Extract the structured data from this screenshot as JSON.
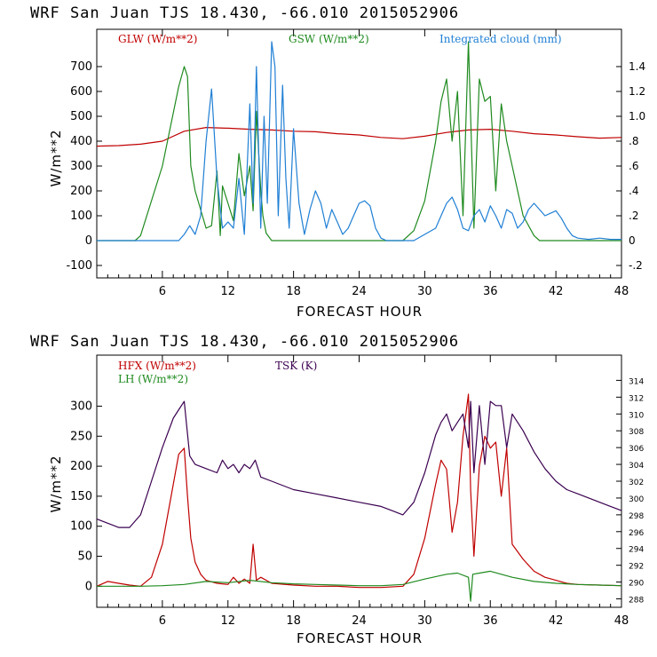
{
  "colors": {
    "red": "#c00000",
    "green": "#1f8a1f",
    "blue": "#1f7fd4",
    "purple": "#3a0050"
  },
  "chart_data": [
    {
      "type": "line",
      "header": "WRF  San Juan TJS  18.430, -66.010  2015052906",
      "xlabel": "FORECAST HOUR",
      "ylabel": "W/m**2",
      "xlim": [
        0,
        48
      ],
      "ylim": [
        -150,
        850
      ],
      "y2lim": [
        -0.3,
        1.7
      ],
      "x_ticks": [
        "6",
        "12",
        "18",
        "24",
        "30",
        "36",
        "42",
        "48"
      ],
      "y_ticks": [
        -100,
        0,
        100,
        200,
        300,
        400,
        500,
        600,
        700
      ],
      "y2_ticks": [
        "-.2",
        "0",
        ".2",
        ".4",
        ".6",
        ".8",
        "1.0",
        "1.2",
        "1.4"
      ],
      "grid": false,
      "legend": [
        {
          "label": "GLW (W/m**2)",
          "color": "#c00000"
        },
        {
          "label": "GSW (W/m**2)",
          "color": "#1f8a1f"
        },
        {
          "label": "Integrated cloud (mm)",
          "color": "#1f7fd4"
        }
      ],
      "series": [
        {
          "name": "GLW (W/m**2)",
          "axis": "left",
          "color": "#c00000",
          "x": [
            0,
            2,
            4,
            6,
            8,
            10,
            12,
            14,
            16,
            18,
            20,
            22,
            24,
            26,
            28,
            30,
            32,
            34,
            36,
            38,
            40,
            42,
            44,
            46,
            48
          ],
          "y": [
            380,
            382,
            388,
            400,
            440,
            455,
            452,
            448,
            445,
            440,
            438,
            430,
            425,
            415,
            410,
            420,
            435,
            445,
            448,
            440,
            430,
            425,
            418,
            412,
            415
          ]
        },
        {
          "name": "GSW (W/m**2)",
          "axis": "left",
          "color": "#1f8a1f",
          "x": [
            0,
            3.5,
            4,
            6,
            7.5,
            8,
            8.3,
            8.6,
            9,
            10,
            10.5,
            11,
            11.3,
            11.5,
            12,
            12.5,
            13,
            13.5,
            14,
            14.3,
            14.6,
            15,
            15.2,
            15.5,
            16,
            28,
            29,
            30,
            31,
            31.5,
            32,
            32.5,
            33,
            33.5,
            34,
            34.2,
            34.5,
            35,
            35.5,
            36,
            36.5,
            37,
            37.5,
            38,
            39,
            40,
            40.5,
            48
          ],
          "y": [
            0,
            0,
            20,
            300,
            620,
            700,
            660,
            300,
            200,
            50,
            60,
            280,
            20,
            220,
            150,
            80,
            350,
            180,
            300,
            120,
            520,
            200,
            100,
            30,
            0,
            0,
            40,
            160,
            400,
            560,
            650,
            400,
            600,
            100,
            800,
            500,
            50,
            650,
            560,
            580,
            200,
            550,
            400,
            300,
            100,
            20,
            0,
            0
          ]
        },
        {
          "name": "Integrated cloud (mm)",
          "axis": "right",
          "color": "#1f7fd4",
          "x": [
            0,
            7.5,
            8,
            8.5,
            9,
            9.5,
            10,
            10.5,
            11,
            11.5,
            12,
            12.5,
            13,
            13.5,
            14,
            14.3,
            14.6,
            15,
            15.3,
            15.6,
            16,
            16.3,
            16.6,
            17,
            17.3,
            17.6,
            18,
            18.5,
            19,
            19.5,
            20,
            20.5,
            21,
            21.5,
            22,
            22.5,
            23,
            23.5,
            24,
            24.5,
            25,
            25.5,
            26,
            26.5,
            27,
            28,
            29,
            30,
            31,
            31.5,
            32,
            32.5,
            33,
            33.5,
            34,
            34.5,
            35,
            35.5,
            36,
            36.5,
            37,
            37.5,
            38,
            38.5,
            39,
            39.5,
            40,
            40.5,
            41,
            41.5,
            42,
            42.5,
            43,
            43.5,
            44,
            45,
            46,
            47,
            48
          ],
          "y": [
            0,
            0,
            0.05,
            0.12,
            0.05,
            0.2,
            0.8,
            1.22,
            0.5,
            0.1,
            0.15,
            0.1,
            0.5,
            0.05,
            1.1,
            0.3,
            1.4,
            0.1,
            1.0,
            0.3,
            1.6,
            1.4,
            0.2,
            1.25,
            0.5,
            0.1,
            0.9,
            0.3,
            0.05,
            0.25,
            0.4,
            0.3,
            0.1,
            0.25,
            0.15,
            0.05,
            0.1,
            0.2,
            0.3,
            0.32,
            0.28,
            0.1,
            0.02,
            0,
            0,
            0,
            0,
            0.05,
            0.1,
            0.2,
            0.3,
            0.35,
            0.25,
            0.1,
            0.08,
            0.2,
            0.25,
            0.15,
            0.28,
            0.2,
            0.1,
            0.25,
            0.22,
            0.1,
            0.15,
            0.25,
            0.3,
            0.25,
            0.2,
            0.22,
            0.24,
            0.18,
            0.1,
            0.04,
            0.02,
            0.01,
            0.02,
            0.01,
            0.01
          ]
        }
      ]
    },
    {
      "type": "line",
      "header": "WRF  San Juan TJS  18.430, -66.010  2015052906",
      "xlabel": "FORECAST HOUR",
      "ylabel": "W/m**2",
      "xlim": [
        0,
        48
      ],
      "ylim": [
        -35,
        385
      ],
      "y2lim": [
        287,
        317
      ],
      "x_ticks": [
        "6",
        "12",
        "18",
        "24",
        "30",
        "36",
        "42",
        "48"
      ],
      "y_ticks": [
        0,
        50,
        100,
        150,
        200,
        250,
        300
      ],
      "y2_ticks": [
        "288",
        "290",
        "292",
        "294",
        "296",
        "298",
        "300",
        "302",
        "304",
        "306",
        "308",
        "310",
        "312",
        "314"
      ],
      "grid": false,
      "legend": [
        {
          "label": "HFX (W/m**2)",
          "color": "#c00000"
        },
        {
          "label": "LH  (W/m**2)",
          "color": "#1f8a1f"
        },
        {
          "label": "TSK (K)",
          "color": "#3a0050"
        }
      ],
      "series": [
        {
          "name": "HFX (W/m**2)",
          "axis": "left",
          "color": "#c00000",
          "x": [
            0,
            1,
            2,
            3,
            4,
            5,
            6,
            7,
            7.5,
            8,
            8.3,
            8.6,
            9,
            9.5,
            10,
            11,
            12,
            12.5,
            13,
            13.5,
            14,
            14.3,
            14.6,
            15,
            16,
            18,
            20,
            22,
            24,
            26,
            28,
            29,
            30,
            31,
            31.5,
            32,
            32.5,
            33,
            33.5,
            34,
            34.2,
            34.5,
            35,
            35.5,
            36,
            36.5,
            37,
            37.5,
            38,
            39,
            40,
            41,
            42,
            43,
            44,
            46,
            48
          ],
          "y": [
            0,
            8,
            5,
            2,
            0,
            15,
            70,
            170,
            220,
            230,
            150,
            80,
            40,
            20,
            10,
            5,
            3,
            15,
            5,
            12,
            5,
            70,
            10,
            15,
            5,
            2,
            0,
            0,
            -2,
            -2,
            0,
            20,
            80,
            170,
            210,
            195,
            90,
            140,
            250,
            320,
            160,
            50,
            200,
            250,
            230,
            240,
            150,
            230,
            70,
            45,
            25,
            15,
            10,
            5,
            3,
            2,
            1
          ]
        },
        {
          "name": "LH  (W/m**2)",
          "axis": "left",
          "color": "#1f8a1f",
          "x": [
            0,
            4,
            6,
            8,
            10,
            12,
            14,
            16,
            18,
            20,
            22,
            24,
            26,
            28,
            30,
            32,
            33,
            34,
            34.2,
            34.4,
            35,
            36,
            37,
            38,
            40,
            42,
            44,
            46,
            48
          ],
          "y": [
            0,
            0,
            1,
            3,
            8,
            6,
            10,
            6,
            4,
            3,
            2,
            1,
            1,
            3,
            12,
            20,
            22,
            15,
            -25,
            20,
            22,
            25,
            20,
            15,
            8,
            5,
            3,
            2,
            1
          ]
        },
        {
          "name": "TSK (K)",
          "axis": "right",
          "color": "#3a0050",
          "x": [
            0,
            1,
            2,
            3,
            4,
            5,
            6,
            7,
            7.5,
            8,
            8.5,
            9,
            10,
            11,
            11.5,
            12,
            12.5,
            13,
            13.5,
            14,
            14.5,
            15,
            16,
            18,
            20,
            22,
            24,
            26,
            27,
            28,
            29,
            30,
            31,
            31.5,
            32,
            32.5,
            33,
            33.5,
            34,
            34.2,
            34.5,
            35,
            35.5,
            36,
            36.5,
            37,
            37.5,
            38,
            39,
            40,
            41,
            42,
            43,
            44,
            45,
            46,
            47,
            48
          ],
          "y": [
            297.5,
            297,
            296.5,
            296.5,
            298,
            302,
            306,
            309.5,
            310.5,
            311.5,
            305,
            304,
            303.5,
            303,
            304.5,
            303.5,
            304,
            303,
            304,
            303.5,
            304.5,
            302.5,
            302,
            301,
            300.5,
            300,
            299.5,
            299,
            298.5,
            298,
            299.5,
            303,
            307.5,
            309,
            310,
            308,
            309,
            310,
            306,
            311.5,
            303,
            311,
            304,
            311.5,
            311,
            311,
            306,
            310,
            308,
            305.5,
            303.5,
            302,
            301,
            300.5,
            300,
            299.5,
            299,
            298.5
          ]
        }
      ]
    }
  ]
}
